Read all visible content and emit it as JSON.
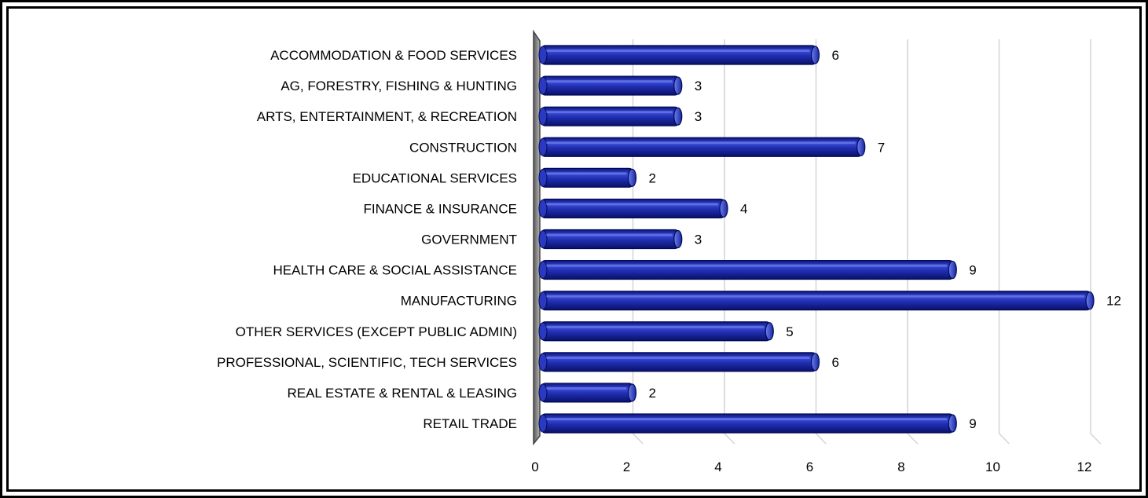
{
  "chart_data": {
    "type": "bar",
    "orientation": "horizontal",
    "title": "",
    "xlabel": "",
    "ylabel": "",
    "categories": [
      "ACCOMMODATION & FOOD SERVICES",
      "AG, FORESTRY, FISHING & HUNTING",
      "ARTS, ENTERTAINMENT, & RECREATION",
      "CONSTRUCTION",
      "EDUCATIONAL SERVICES",
      "FINANCE & INSURANCE",
      "GOVERNMENT",
      "HEALTH CARE & SOCIAL ASSISTANCE",
      "MANUFACTURING",
      "OTHER SERVICES (EXCEPT PUBLIC ADMIN)",
      "PROFESSIONAL, SCIENTIFIC,  TECH SERVICES",
      "REAL ESTATE & RENTAL & LEASING",
      "RETAIL TRADE"
    ],
    "values": [
      6,
      3,
      3,
      7,
      2,
      4,
      3,
      9,
      12,
      5,
      6,
      2,
      9
    ],
    "xlim": [
      0,
      12
    ],
    "xticks": [
      "0",
      "2",
      "4",
      "6",
      "8",
      "10",
      "12"
    ],
    "grid": true,
    "legend": "none",
    "colors": {
      "bar": "#1f2eb0",
      "bar_dark": "#0c147a",
      "bar_light": "#5a6ee0",
      "grid": "#d4d4d4",
      "wall": "#8f8f8f"
    }
  }
}
